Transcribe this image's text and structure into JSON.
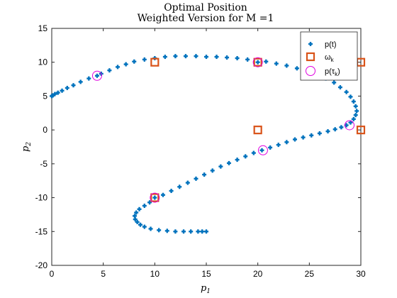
{
  "chart_data": {
    "type": "scatter",
    "title": "Optimal Position",
    "subtitle": "Weighted Version for M =1",
    "xlabel": "p1",
    "ylabel": "p2",
    "xlim": [
      0,
      30
    ],
    "ylim": [
      -20,
      15
    ],
    "xticks": [
      0,
      5,
      10,
      15,
      20,
      25,
      30
    ],
    "yticks": [
      -20,
      -15,
      -10,
      -5,
      0,
      5,
      10,
      15
    ],
    "grid": false,
    "legend_position": "top-right",
    "colors": {
      "trajectory": "#0072BD",
      "omega": "#D95319",
      "tau": "#E000E0"
    },
    "series": [
      {
        "name": "p(t)",
        "marker": "plus",
        "points": [
          [
            15,
            -15
          ],
          [
            14.6,
            -15
          ],
          [
            14.2,
            -15
          ],
          [
            13.5,
            -15
          ],
          [
            12.8,
            -15
          ],
          [
            12,
            -15
          ],
          [
            11.2,
            -14.9
          ],
          [
            10.4,
            -14.8
          ],
          [
            9.6,
            -14.6
          ],
          [
            9.0,
            -14.3
          ],
          [
            8.6,
            -14
          ],
          [
            8.3,
            -13.6
          ],
          [
            8.1,
            -13.2
          ],
          [
            8.05,
            -12.7
          ],
          [
            8.2,
            -12.2
          ],
          [
            8.5,
            -11.7
          ],
          [
            9.0,
            -11.2
          ],
          [
            9.5,
            -10.7
          ],
          [
            10,
            -10
          ],
          [
            10.8,
            -9.6
          ],
          [
            11.6,
            -9.0
          ],
          [
            12.4,
            -8.4
          ],
          [
            13.2,
            -7.8
          ],
          [
            14.0,
            -7.2
          ],
          [
            14.8,
            -6.6
          ],
          [
            15.6,
            -6.0
          ],
          [
            16.4,
            -5.4
          ],
          [
            17.2,
            -4.9
          ],
          [
            18.0,
            -4.4
          ],
          [
            18.8,
            -3.9
          ],
          [
            19.6,
            -3.4
          ],
          [
            20.4,
            -3.0
          ],
          [
            21.2,
            -2.6
          ],
          [
            22.0,
            -2.2
          ],
          [
            22.8,
            -1.8
          ],
          [
            23.6,
            -1.4
          ],
          [
            24.4,
            -1.1
          ],
          [
            25.2,
            -0.8
          ],
          [
            26.0,
            -0.5
          ],
          [
            26.8,
            -0.2
          ],
          [
            27.5,
            0.1
          ],
          [
            28.1,
            0.4
          ],
          [
            28.6,
            0.7
          ],
          [
            29.0,
            1.1
          ],
          [
            29.3,
            1.6
          ],
          [
            29.5,
            2.2
          ],
          [
            29.6,
            2.8
          ],
          [
            29.5,
            3.5
          ],
          [
            29.3,
            4.2
          ],
          [
            29.0,
            4.9
          ],
          [
            28.6,
            5.6
          ],
          [
            28.0,
            6.3
          ],
          [
            27.4,
            7.0
          ],
          [
            26.6,
            7.6
          ],
          [
            25.7,
            8.2
          ],
          [
            24.8,
            8.7
          ],
          [
            23.8,
            9.1
          ],
          [
            22.8,
            9.5
          ],
          [
            21.8,
            9.8
          ],
          [
            20.8,
            10.1
          ],
          [
            20,
            10
          ],
          [
            19.0,
            10.4
          ],
          [
            18.0,
            10.6
          ],
          [
            17.0,
            10.7
          ],
          [
            16.0,
            10.8
          ],
          [
            15.0,
            10.8
          ],
          [
            14.0,
            10.9
          ],
          [
            13.0,
            10.9
          ],
          [
            12.0,
            10.9
          ],
          [
            11.0,
            10.8
          ],
          [
            10.0,
            10.6
          ],
          [
            9.0,
            10.4
          ],
          [
            8.0,
            10.1
          ],
          [
            7.2,
            9.7
          ],
          [
            6.4,
            9.3
          ],
          [
            5.6,
            8.8
          ],
          [
            4.8,
            8.3
          ],
          [
            4.4,
            8.0
          ],
          [
            3.6,
            7.6
          ],
          [
            2.8,
            7.1
          ],
          [
            2.1,
            6.6
          ],
          [
            1.5,
            6.2
          ],
          [
            1.0,
            5.8
          ],
          [
            0.6,
            5.5
          ],
          [
            0.3,
            5.3
          ],
          [
            0.1,
            5.1
          ],
          [
            0,
            5.0
          ]
        ]
      },
      {
        "name": "ωk",
        "marker": "square",
        "points": [
          [
            10,
            10
          ],
          [
            20,
            10
          ],
          [
            30,
            10
          ],
          [
            20,
            0
          ],
          [
            30,
            0
          ],
          [
            10,
            -10
          ]
        ]
      },
      {
        "name": "p(τk)",
        "marker": "circle",
        "points": [
          [
            4.4,
            8.0
          ],
          [
            20,
            10
          ],
          [
            28.9,
            0.7
          ],
          [
            20.5,
            -3
          ],
          [
            10,
            -10
          ]
        ]
      }
    ]
  },
  "legend": {
    "entries": [
      {
        "base": "p(t)",
        "sub": ""
      },
      {
        "base": "ω",
        "sub": "k"
      },
      {
        "base": "p(τ",
        "sub": "k",
        "tail": ")"
      }
    ]
  }
}
